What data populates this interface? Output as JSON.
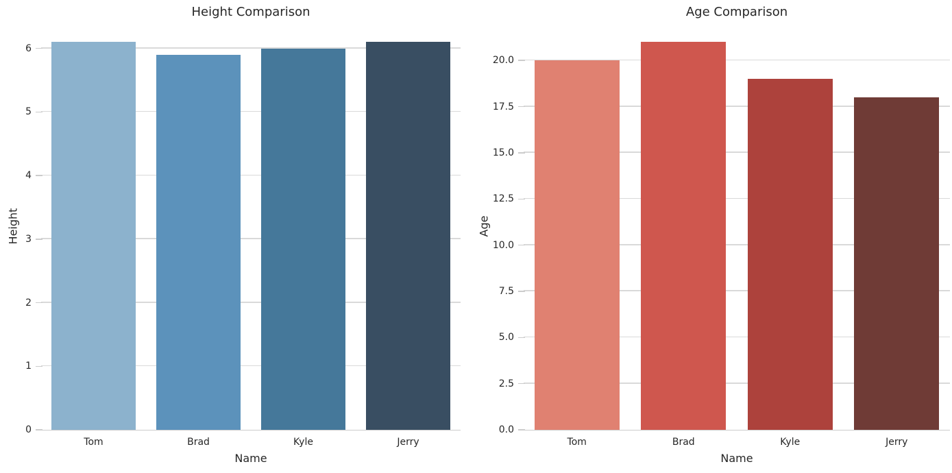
{
  "figure": {
    "background": "#ffffff"
  },
  "colors": {
    "grid": "#d9d9d9",
    "spine": "#cccccc",
    "tick_mark": "#cccccc",
    "text": "#262626"
  },
  "chart_data": [
    {
      "type": "bar",
      "title": "Height Comparison",
      "xlabel": "Name",
      "ylabel": "Height",
      "categories": [
        "Tom",
        "Brad",
        "Kyle",
        "Jerry"
      ],
      "values": [
        6.1,
        5.9,
        6.0,
        6.1
      ],
      "bar_colors": [
        "#8cb2cd",
        "#5c92bb",
        "#45789a",
        "#394e62"
      ],
      "ylim": [
        0,
        6.405
      ],
      "yticks": [
        0,
        1,
        2,
        3,
        4,
        5,
        6
      ],
      "ytick_labels": [
        "0",
        "1",
        "2",
        "3",
        "4",
        "5",
        "6"
      ],
      "bar_width_fraction": 0.8,
      "grid": "horizontal",
      "legend": "none"
    },
    {
      "type": "bar",
      "title": "Age Comparison",
      "xlabel": "Name",
      "ylabel": "Age",
      "categories": [
        "Tom",
        "Brad",
        "Kyle",
        "Jerry"
      ],
      "values": [
        20,
        21,
        19,
        18
      ],
      "bar_colors": [
        "#e08171",
        "#cf574e",
        "#ad423c",
        "#6f3b36"
      ],
      "ylim": [
        0,
        22.05
      ],
      "yticks": [
        0,
        2.5,
        5,
        7.5,
        10,
        12.5,
        15,
        17.5,
        20
      ],
      "ytick_labels": [
        "0.0",
        "2.5",
        "5.0",
        "7.5",
        "10.0",
        "12.5",
        "15.0",
        "17.5",
        "20.0"
      ],
      "bar_width_fraction": 0.8,
      "grid": "horizontal",
      "legend": "none"
    }
  ]
}
